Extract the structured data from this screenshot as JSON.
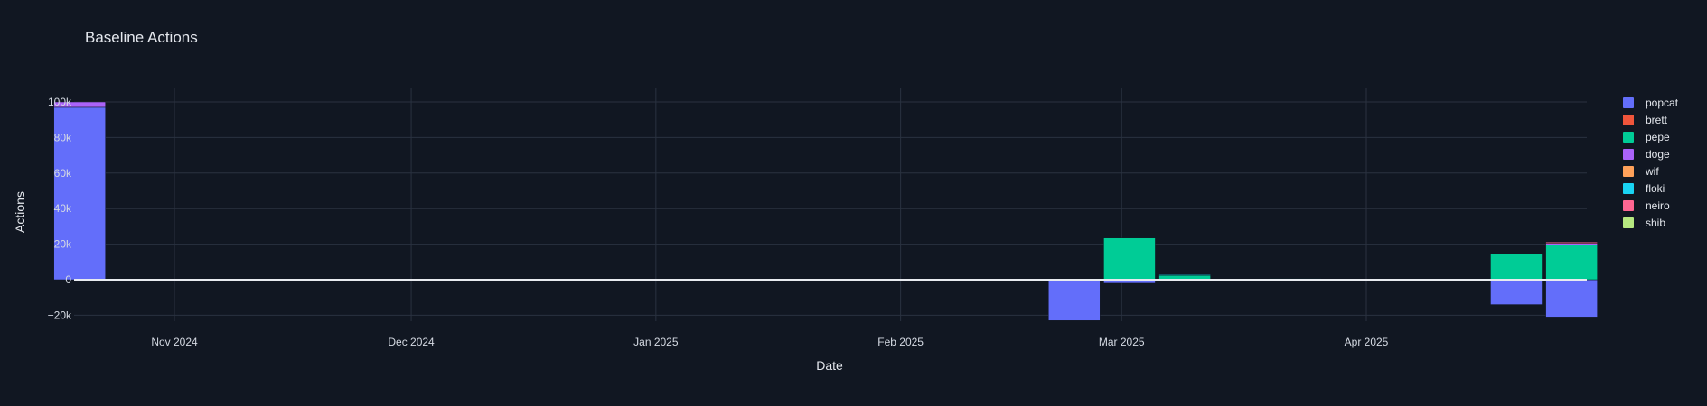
{
  "chart_data": {
    "type": "bar",
    "title": "Baseline Actions",
    "xlabel": "Date",
    "ylabel": "Actions",
    "barmode": "relative",
    "ylim": [
      -24000,
      108000
    ],
    "x_ticks": [
      "Nov 2024",
      "Dec 2024",
      "Jan 2025",
      "Feb 2025",
      "Mar 2025",
      "Apr 2025"
    ],
    "x_tick_dates": [
      "2024-11-01",
      "2024-12-01",
      "2025-01-01",
      "2025-02-01",
      "2025-03-01",
      "2025-04-01"
    ],
    "y_ticks": [
      -20000,
      0,
      20000,
      40000,
      60000,
      80000,
      100000
    ],
    "y_tick_labels": [
      "−20k",
      "0",
      "20k",
      "40k",
      "60k",
      "80k",
      "100k"
    ],
    "grid": true,
    "legend_position": "right",
    "categories": [
      "2024-10-20",
      "2025-02-23",
      "2025-03-02",
      "2025-03-09",
      "2025-03-23",
      "2025-04-20",
      "2025-04-27"
    ],
    "series": [
      {
        "name": "popcat",
        "color": "#636efa",
        "values": [
          97000,
          -23000,
          -2000,
          0,
          0,
          -14000,
          -21000
        ]
      },
      {
        "name": "brett",
        "color": "#ef553b",
        "values": [
          0,
          0,
          0,
          0,
          0,
          0,
          0
        ]
      },
      {
        "name": "pepe",
        "color": "#00cc96",
        "values": [
          0,
          0,
          23500,
          2500,
          0,
          14500,
          19500
        ]
      },
      {
        "name": "doge",
        "color": "#ab63fa",
        "values": [
          3000,
          0,
          0,
          -700,
          0,
          0,
          1000
        ]
      },
      {
        "name": "wif",
        "color": "#ffa15a",
        "values": [
          0,
          0,
          0,
          0,
          0,
          0,
          0
        ]
      },
      {
        "name": "floki",
        "color": "#19d3f3",
        "values": [
          0,
          0,
          0,
          400,
          600,
          0,
          0
        ]
      },
      {
        "name": "neiro",
        "color": "#ff6692",
        "values": [
          0,
          0,
          0,
          0,
          0,
          0,
          700
        ]
      },
      {
        "name": "shib",
        "color": "#b6e880",
        "values": [
          0,
          0,
          0,
          0,
          0,
          0,
          0
        ]
      }
    ]
  }
}
